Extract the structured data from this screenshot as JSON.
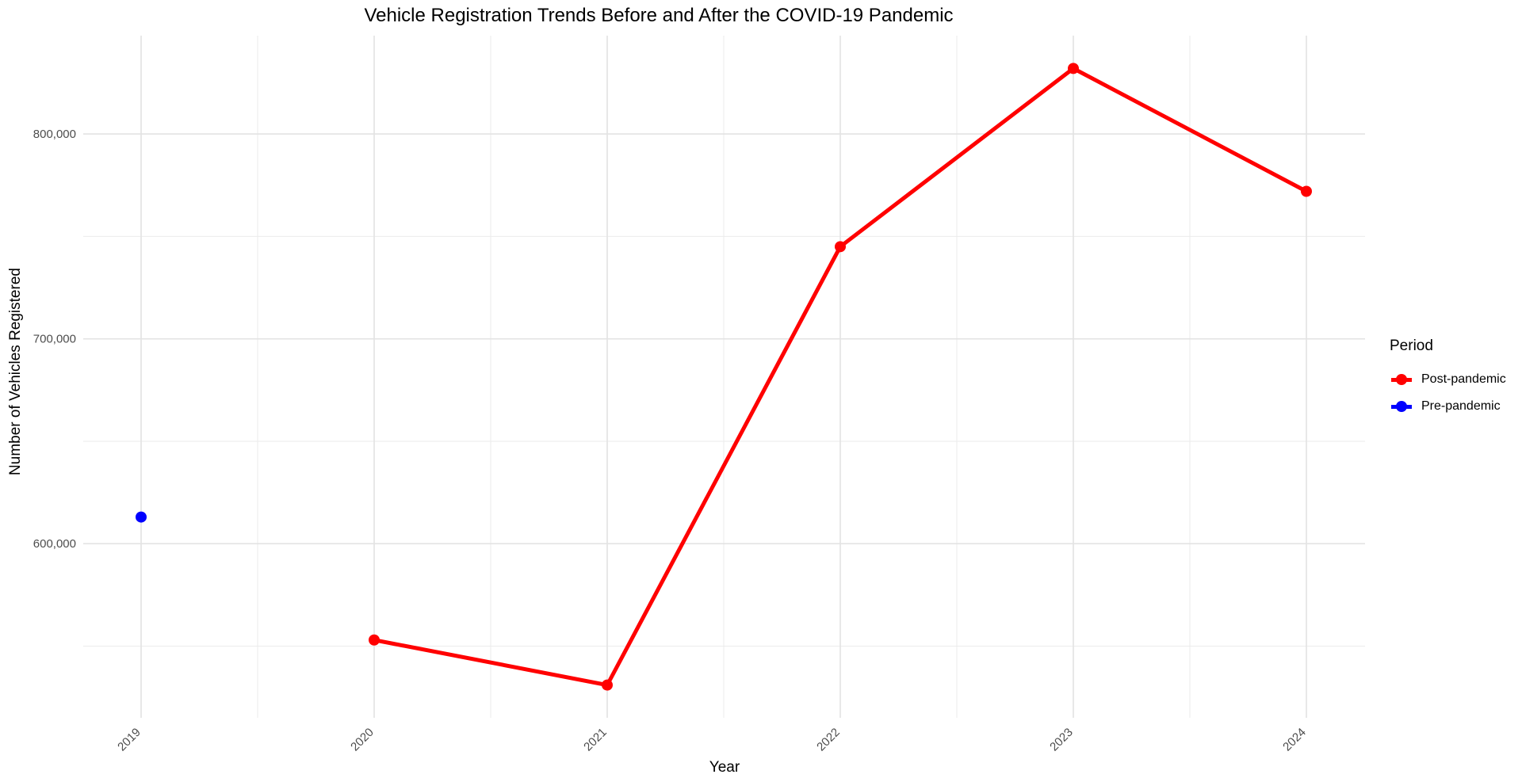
{
  "chart_data": {
    "type": "line",
    "title": "Vehicle Registration Trends Before and After the COVID-19 Pandemic",
    "xlabel": "Year",
    "ylabel": "Number of Vehicles Registered",
    "x": [
      2019,
      2020,
      2021,
      2022,
      2023,
      2024
    ],
    "x_tick_labels": [
      "2019",
      "2020",
      "2021",
      "2022",
      "2023",
      "2024"
    ],
    "y_ticks": [
      600000,
      700000,
      800000
    ],
    "y_tick_labels": [
      "600,000",
      "700,000",
      "800,000"
    ],
    "ylim": [
      515000,
      848000
    ],
    "grid": true,
    "legend": {
      "title": "Period",
      "position": "right"
    },
    "series": [
      {
        "name": "Post-pandemic",
        "color": "#FF0000",
        "x": [
          2020,
          2021,
          2022,
          2023,
          2024
        ],
        "values": [
          553000,
          531000,
          745000,
          832000,
          772000
        ]
      },
      {
        "name": "Pre-pandemic",
        "color": "#0000FF",
        "x": [
          2019
        ],
        "values": [
          613000
        ]
      }
    ]
  }
}
